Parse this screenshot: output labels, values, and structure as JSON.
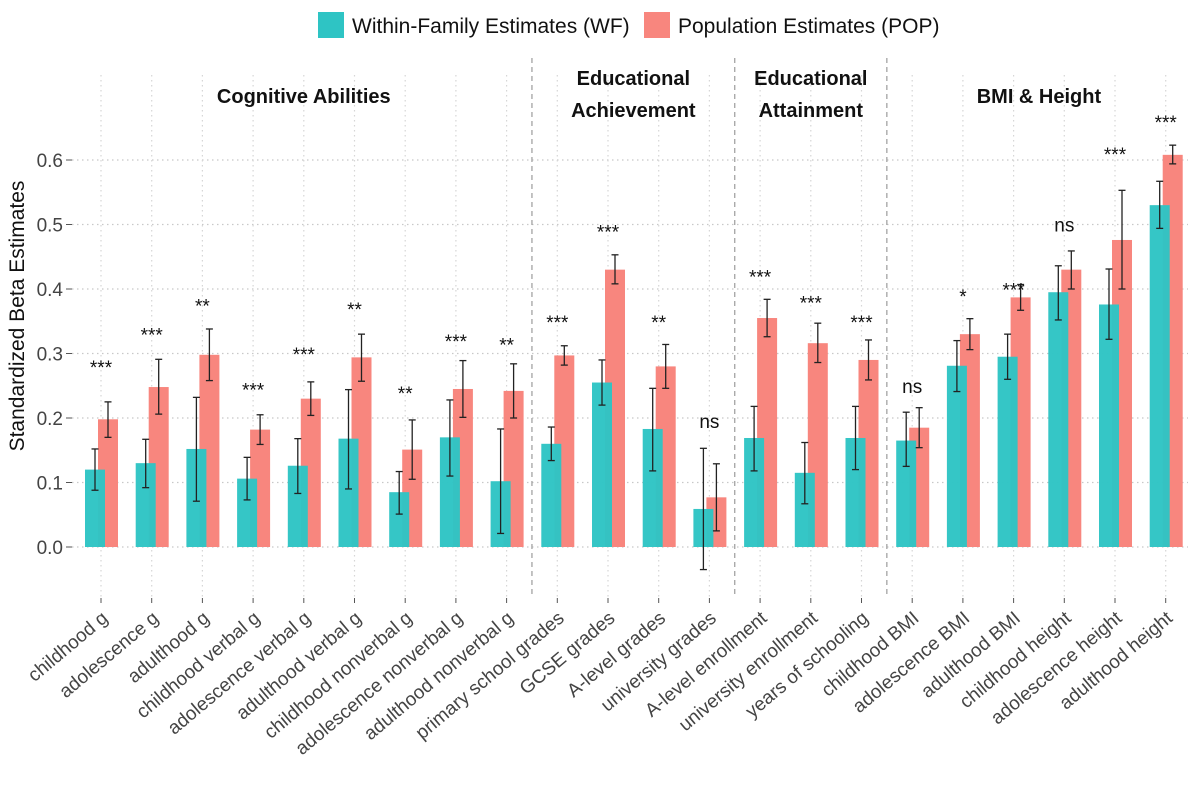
{
  "chart_data": {
    "type": "bar",
    "title": "",
    "xlabel": "",
    "ylabel": "Standardized Beta Estimates",
    "ylim": [
      -0.07,
      0.65
    ],
    "yticks": [
      "0.0",
      "0.1",
      "0.2",
      "0.3",
      "0.4",
      "0.5",
      "0.6"
    ],
    "ytick_values": [
      0.0,
      0.1,
      0.2,
      0.3,
      0.4,
      0.5,
      0.6
    ],
    "grid": true,
    "legend_position": "top",
    "series": [
      {
        "name": "Within-Family Estimates (WF)",
        "color": "#2ec4c4"
      },
      {
        "name": "Population Estimates (POP)",
        "color": "#f8867e"
      }
    ],
    "groups": [
      {
        "title_lines": [
          "Cognitive Abilities"
        ],
        "start": 0,
        "end": 8
      },
      {
        "title_lines": [
          "Educational",
          "Achievement"
        ],
        "start": 9,
        "end": 12
      },
      {
        "title_lines": [
          "Educational",
          "Attainment"
        ],
        "start": 13,
        "end": 15
      },
      {
        "title_lines": [
          "BMI & Height"
        ],
        "start": 16,
        "end": 21
      }
    ],
    "categories": [
      "childhood g",
      "adolescence g",
      "adulthood g",
      "childhood verbal g",
      "adolescence verbal g",
      "adulthood verbal g",
      "childhood nonverbal g",
      "adolescence nonverbal g",
      "adulthood nonverbal g",
      "primary school grades",
      "GCSE grades",
      "A-level grades",
      "university grades",
      "A-level enrollment",
      "university enrollment",
      "years of schooling",
      "childhood BMI",
      "adolescence BMI",
      "adulthood BMI",
      "childhood height",
      "adolescence height",
      "adulthood height"
    ],
    "wf": [
      {
        "value": 0.12,
        "low": 0.088,
        "high": 0.152
      },
      {
        "value": 0.13,
        "low": 0.092,
        "high": 0.167
      },
      {
        "value": 0.152,
        "low": 0.071,
        "high": 0.232
      },
      {
        "value": 0.106,
        "low": 0.073,
        "high": 0.139
      },
      {
        "value": 0.126,
        "low": 0.083,
        "high": 0.168
      },
      {
        "value": 0.168,
        "low": 0.09,
        "high": 0.244
      },
      {
        "value": 0.085,
        "low": 0.051,
        "high": 0.117
      },
      {
        "value": 0.17,
        "low": 0.11,
        "high": 0.228
      },
      {
        "value": 0.102,
        "low": 0.021,
        "high": 0.183
      },
      {
        "value": 0.16,
        "low": 0.134,
        "high": 0.186
      },
      {
        "value": 0.255,
        "low": 0.22,
        "high": 0.29
      },
      {
        "value": 0.183,
        "low": 0.118,
        "high": 0.246
      },
      {
        "value": 0.059,
        "low": -0.035,
        "high": 0.153
      },
      {
        "value": 0.169,
        "low": 0.118,
        "high": 0.218
      },
      {
        "value": 0.115,
        "low": 0.067,
        "high": 0.162
      },
      {
        "value": 0.169,
        "low": 0.12,
        "high": 0.218
      },
      {
        "value": 0.165,
        "low": 0.125,
        "high": 0.209
      },
      {
        "value": 0.281,
        "low": 0.241,
        "high": 0.32
      },
      {
        "value": 0.295,
        "low": 0.26,
        "high": 0.33
      },
      {
        "value": 0.395,
        "low": 0.352,
        "high": 0.436
      },
      {
        "value": 0.376,
        "low": 0.322,
        "high": 0.431
      },
      {
        "value": 0.53,
        "low": 0.494,
        "high": 0.567
      }
    ],
    "pop": [
      {
        "value": 0.198,
        "low": 0.17,
        "high": 0.225
      },
      {
        "value": 0.248,
        "low": 0.206,
        "high": 0.291
      },
      {
        "value": 0.298,
        "low": 0.258,
        "high": 0.338
      },
      {
        "value": 0.182,
        "low": 0.159,
        "high": 0.205
      },
      {
        "value": 0.23,
        "low": 0.204,
        "high": 0.256
      },
      {
        "value": 0.294,
        "low": 0.257,
        "high": 0.33
      },
      {
        "value": 0.151,
        "low": 0.105,
        "high": 0.197
      },
      {
        "value": 0.245,
        "low": 0.201,
        "high": 0.289
      },
      {
        "value": 0.242,
        "low": 0.2,
        "high": 0.284
      },
      {
        "value": 0.297,
        "low": 0.282,
        "high": 0.312
      },
      {
        "value": 0.43,
        "low": 0.408,
        "high": 0.453
      },
      {
        "value": 0.28,
        "low": 0.246,
        "high": 0.314
      },
      {
        "value": 0.077,
        "low": 0.025,
        "high": 0.129
      },
      {
        "value": 0.355,
        "low": 0.326,
        "high": 0.384
      },
      {
        "value": 0.316,
        "low": 0.286,
        "high": 0.347
      },
      {
        "value": 0.29,
        "low": 0.259,
        "high": 0.321
      },
      {
        "value": 0.185,
        "low": 0.154,
        "high": 0.216
      },
      {
        "value": 0.33,
        "low": 0.306,
        "high": 0.354
      },
      {
        "value": 0.387,
        "low": 0.367,
        "high": 0.407
      },
      {
        "value": 0.43,
        "low": 0.4,
        "high": 0.459
      },
      {
        "value": 0.476,
        "low": 0.4,
        "high": 0.553
      },
      {
        "value": 0.608,
        "low": 0.594,
        "high": 0.623
      }
    ],
    "significance": [
      "***",
      "***",
      "**",
      "***",
      "***",
      "**",
      "**",
      "***",
      "**",
      "***",
      "***",
      "**",
      "ns",
      "***",
      "***",
      "***",
      "ns",
      "*",
      "***",
      "ns",
      "***",
      "***"
    ],
    "significance_values": [
      0.29,
      0.34,
      0.385,
      0.255,
      0.31,
      0.38,
      0.25,
      0.33,
      0.325,
      0.36,
      0.5,
      0.36,
      0.195,
      0.43,
      0.39,
      0.36,
      0.25,
      0.4,
      0.41,
      0.5,
      0.62,
      0.67
    ]
  }
}
